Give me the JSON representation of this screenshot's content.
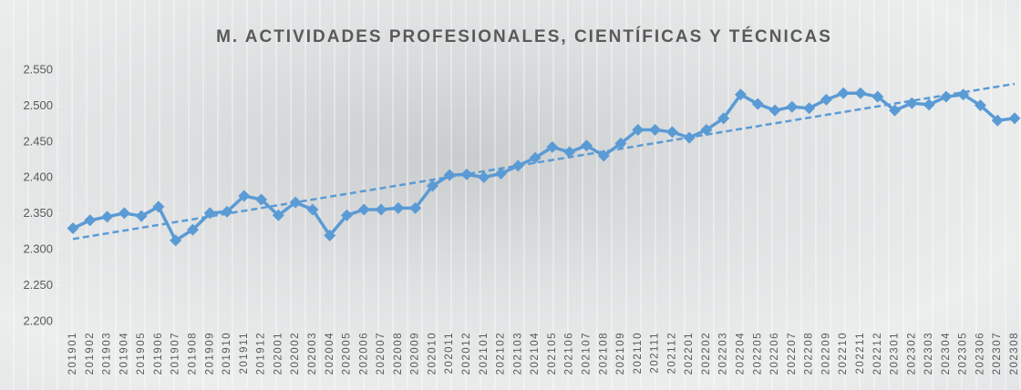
{
  "chart_data": {
    "type": "line",
    "title": "M. ACTIVIDADES PROFESIONALES, CIENTÍFICAS Y TÉCNICAS",
    "categories": [
      "201901",
      "201902",
      "201903",
      "201904",
      "201905",
      "201906",
      "201907",
      "201908",
      "201909",
      "201910",
      "201911",
      "201912",
      "202001",
      "202002",
      "202003",
      "202004",
      "202005",
      "202006",
      "202007",
      "202008",
      "202009",
      "202010",
      "202011",
      "202012",
      "202101",
      "202102",
      "202103",
      "202104",
      "202105",
      "202106",
      "202107",
      "202108",
      "202109",
      "202110",
      "202111",
      "202112",
      "202201",
      "202202",
      "202203",
      "202204",
      "202205",
      "202206",
      "202207",
      "202208",
      "202209",
      "202210",
      "202211",
      "202212",
      "202301",
      "202302",
      "202303",
      "202304",
      "202305",
      "202306",
      "202307",
      "202308"
    ],
    "values": [
      2330,
      2341,
      2346,
      2351,
      2347,
      2360,
      2313,
      2328,
      2351,
      2353,
      2375,
      2370,
      2348,
      2366,
      2356,
      2320,
      2348,
      2356,
      2356,
      2358,
      2358,
      2389,
      2404,
      2405,
      2401,
      2406,
      2417,
      2428,
      2443,
      2436,
      2445,
      2431,
      2448,
      2467,
      2467,
      2464,
      2456,
      2467,
      2483,
      2516,
      2503,
      2494,
      2499,
      2497,
      2509,
      2518,
      2518,
      2513,
      2494,
      2504,
      2502,
      2513,
      2516,
      2501,
      2480,
      2483
    ],
    "color": "#5b9bd5",
    "trend": [
      2315,
      2531
    ],
    "ylim": [
      2200,
      2550
    ],
    "yticks": [
      {
        "value": 2200,
        "label": "2.200"
      },
      {
        "value": 2250,
        "label": "2.250"
      },
      {
        "value": 2300,
        "label": "2.300"
      },
      {
        "value": 2350,
        "label": "2.350"
      },
      {
        "value": 2400,
        "label": "2.400"
      },
      {
        "value": 2450,
        "label": "2.450"
      },
      {
        "value": 2500,
        "label": "2.500"
      },
      {
        "value": 2550,
        "label": "2.550"
      }
    ]
  }
}
